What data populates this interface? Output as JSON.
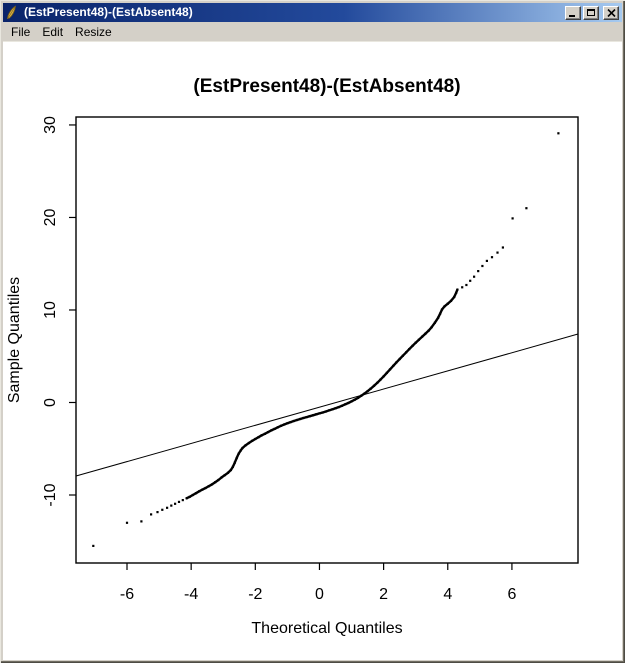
{
  "window": {
    "title": "(EstPresent48)-(EstAbsent48)",
    "app_icon": "feather-icon",
    "menu": [
      "File",
      "Edit",
      "Resize"
    ],
    "control_icons": [
      "minimize-icon",
      "maximize-icon",
      "close-icon"
    ]
  },
  "colors": {
    "titlebar_start": "#0a246a",
    "titlebar_end": "#a6caf0",
    "chrome": "#d4d0c8",
    "plot_background": "#ffffff",
    "plot_foreground": "#000000",
    "title_text": "#ffffff"
  },
  "chart_data": {
    "type": "scatter",
    "title": "(EstPresent48)-(EstAbsent48)",
    "xlabel": "Theoretical Quantiles",
    "ylabel": "Sample Quantiles",
    "x_ticks": [
      -6,
      -4,
      -2,
      0,
      2,
      4,
      6
    ],
    "y_ticks": [
      -10,
      0,
      10,
      20,
      30
    ],
    "xlim": [
      -7.59,
      8.06
    ],
    "ylim": [
      -17.35,
      30.86
    ],
    "grid": false,
    "legend": false,
    "reference_line": {
      "x1": -7.59,
      "y1": -7.95,
      "x2": 8.06,
      "y2": 7.4
    },
    "points": [
      [
        -7.05,
        -15.5
      ],
      [
        -6.0,
        -13.0
      ],
      [
        -5.55,
        -12.85
      ],
      [
        -5.25,
        -12.1
      ],
      [
        -5.05,
        -11.85
      ],
      [
        -4.9,
        -11.6
      ],
      [
        -4.75,
        -11.38
      ],
      [
        -4.62,
        -11.15
      ],
      [
        -4.5,
        -10.95
      ],
      [
        -4.38,
        -10.75
      ],
      [
        -4.26,
        -10.55
      ],
      [
        -4.14,
        -10.35
      ],
      [
        -4.05,
        -10.2
      ],
      [
        -3.95,
        -10.0
      ],
      [
        -3.85,
        -9.8
      ],
      [
        -3.75,
        -9.6
      ],
      [
        -3.65,
        -9.42
      ],
      [
        -3.55,
        -9.24
      ],
      [
        -3.45,
        -9.05
      ],
      [
        -3.35,
        -8.85
      ],
      [
        -3.25,
        -8.62
      ],
      [
        -3.15,
        -8.38
      ],
      [
        -3.05,
        -8.1
      ],
      [
        -2.95,
        -7.85
      ],
      [
        -2.85,
        -7.6
      ],
      [
        -2.76,
        -7.3
      ],
      [
        -2.7,
        -6.95
      ],
      [
        -2.64,
        -6.5
      ],
      [
        -2.58,
        -6.0
      ],
      [
        -2.52,
        -5.55
      ],
      [
        -2.46,
        -5.2
      ],
      [
        -2.4,
        -4.92
      ],
      [
        -2.3,
        -4.62
      ],
      [
        -2.2,
        -4.38
      ],
      [
        -2.1,
        -4.15
      ],
      [
        -2.0,
        -3.95
      ],
      [
        -1.9,
        -3.75
      ],
      [
        -1.8,
        -3.55
      ],
      [
        -1.7,
        -3.38
      ],
      [
        -1.6,
        -3.2
      ],
      [
        -1.5,
        -3.02
      ],
      [
        -1.4,
        -2.85
      ],
      [
        -1.3,
        -2.68
      ],
      [
        -1.2,
        -2.52
      ],
      [
        -1.1,
        -2.38
      ],
      [
        -1.0,
        -2.25
      ],
      [
        -0.9,
        -2.12
      ],
      [
        -0.8,
        -2.0
      ],
      [
        -0.7,
        -1.89
      ],
      [
        -0.6,
        -1.78
      ],
      [
        -0.5,
        -1.68
      ],
      [
        -0.4,
        -1.58
      ],
      [
        -0.3,
        -1.48
      ],
      [
        -0.2,
        -1.38
      ],
      [
        -0.1,
        -1.28
      ],
      [
        0.0,
        -1.18
      ],
      [
        0.1,
        -1.08
      ],
      [
        0.2,
        -0.97
      ],
      [
        0.3,
        -0.86
      ],
      [
        0.4,
        -0.75
      ],
      [
        0.5,
        -0.63
      ],
      [
        0.6,
        -0.5
      ],
      [
        0.7,
        -0.36
      ],
      [
        0.8,
        -0.21
      ],
      [
        0.9,
        -0.05
      ],
      [
        1.0,
        0.12
      ],
      [
        1.1,
        0.3
      ],
      [
        1.2,
        0.5
      ],
      [
        1.3,
        0.72
      ],
      [
        1.4,
        0.96
      ],
      [
        1.5,
        1.22
      ],
      [
        1.6,
        1.5
      ],
      [
        1.7,
        1.8
      ],
      [
        1.8,
        2.12
      ],
      [
        1.9,
        2.46
      ],
      [
        2.0,
        2.82
      ],
      [
        2.1,
        3.2
      ],
      [
        2.2,
        3.58
      ],
      [
        2.3,
        3.96
      ],
      [
        2.4,
        4.33
      ],
      [
        2.5,
        4.7
      ],
      [
        2.6,
        5.06
      ],
      [
        2.7,
        5.42
      ],
      [
        2.8,
        5.77
      ],
      [
        2.9,
        6.12
      ],
      [
        3.0,
        6.46
      ],
      [
        3.1,
        6.79
      ],
      [
        3.2,
        7.11
      ],
      [
        3.3,
        7.42
      ],
      [
        3.4,
        7.75
      ],
      [
        3.5,
        8.15
      ],
      [
        3.6,
        8.62
      ],
      [
        3.7,
        9.15
      ],
      [
        3.76,
        9.6
      ],
      [
        3.82,
        10.05
      ],
      [
        3.9,
        10.4
      ],
      [
        4.0,
        10.68
      ],
      [
        4.1,
        10.98
      ],
      [
        4.2,
        11.4
      ],
      [
        4.26,
        11.85
      ],
      [
        4.3,
        12.2
      ],
      [
        4.45,
        12.45
      ],
      [
        4.58,
        12.7
      ],
      [
        4.7,
        13.15
      ],
      [
        4.82,
        13.6
      ],
      [
        4.95,
        14.2
      ],
      [
        5.08,
        14.75
      ],
      [
        5.22,
        15.3
      ],
      [
        5.38,
        15.7
      ],
      [
        5.55,
        16.2
      ],
      [
        5.72,
        16.75
      ],
      [
        6.02,
        19.9
      ],
      [
        6.45,
        21.0
      ],
      [
        7.45,
        29.1
      ]
    ]
  }
}
